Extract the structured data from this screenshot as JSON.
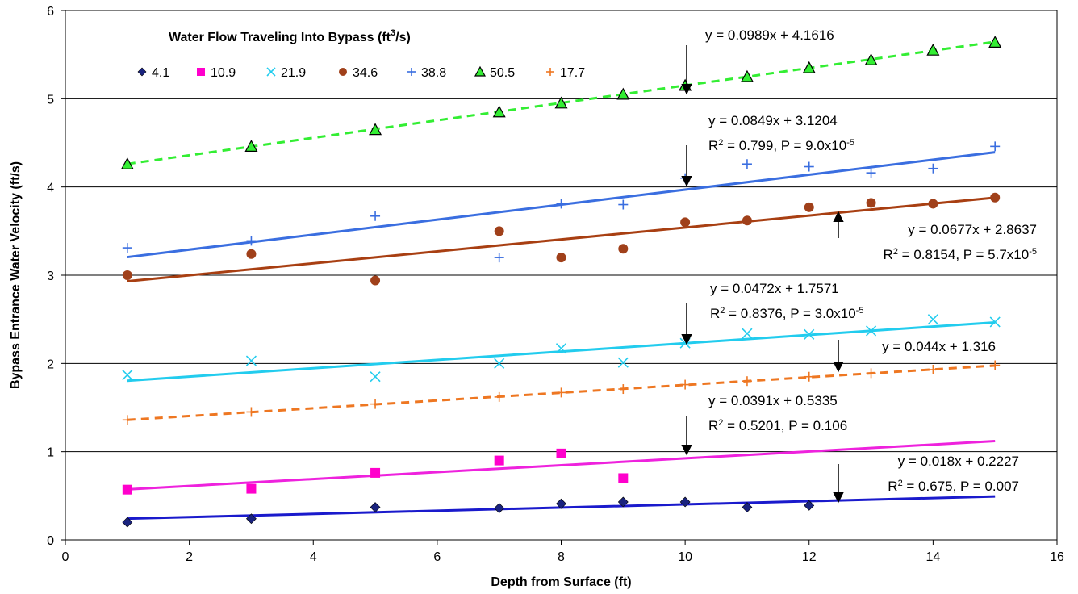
{
  "chart_data": {
    "type": "scatter",
    "title": "",
    "xlabel": "Depth from Surface (ft)",
    "ylabel": "Bypass Entrance Water Velocity (ft/s)",
    "xlim": [
      0,
      16
    ],
    "ylim": [
      0,
      6
    ],
    "x_ticks": [
      0,
      2,
      4,
      6,
      8,
      10,
      12,
      14,
      16
    ],
    "y_ticks": [
      0,
      1,
      2,
      3,
      4,
      5,
      6
    ],
    "grid": "horizontal",
    "legend_title_parts": [
      "Water Flow Traveling Into Bypass (ft",
      "3",
      "/s)"
    ],
    "legend_position": "top-left",
    "series": [
      {
        "name": "4.1",
        "marker": "diamond",
        "color": "#1a237e",
        "line_color": "#1a1acc",
        "line_style": "solid",
        "x": [
          1,
          3,
          5,
          7,
          8,
          9,
          10,
          11,
          12
        ],
        "y": [
          0.2,
          0.24,
          0.37,
          0.36,
          0.41,
          0.43,
          0.43,
          0.37,
          0.39
        ],
        "trend": {
          "slope": 0.018,
          "intercept": 0.2227
        }
      },
      {
        "name": "10.9",
        "marker": "square",
        "color": "#ff00cc",
        "line_color": "#ee22dd",
        "line_style": "solid",
        "x": [
          1,
          3,
          5,
          7,
          8,
          9
        ],
        "y": [
          0.57,
          0.58,
          0.76,
          0.9,
          0.98,
          0.7
        ],
        "trend": {
          "slope": 0.0391,
          "intercept": 0.5335
        }
      },
      {
        "name": "21.9",
        "marker": "x",
        "color": "#22ccee",
        "line_color": "#22ccee",
        "line_style": "solid",
        "x": [
          1,
          3,
          5,
          7,
          8,
          9,
          10,
          11,
          12,
          13,
          14,
          15
        ],
        "y": [
          1.87,
          2.03,
          1.85,
          2.0,
          2.17,
          2.01,
          2.23,
          2.34,
          2.33,
          2.37,
          2.5,
          2.47
        ],
        "trend": {
          "slope": 0.0472,
          "intercept": 1.7571
        }
      },
      {
        "name": "34.6",
        "marker": "circle",
        "color": "#a0401a",
        "line_color": "#a83f12",
        "line_style": "solid",
        "x": [
          1,
          3,
          5,
          7,
          8,
          9,
          10,
          11,
          12,
          13,
          14,
          15
        ],
        "y": [
          3.0,
          3.24,
          2.94,
          3.5,
          3.2,
          3.3,
          3.6,
          3.62,
          3.77,
          3.82,
          3.81,
          3.88
        ],
        "trend": {
          "slope": 0.0677,
          "intercept": 2.8637
        }
      },
      {
        "name": "38.8",
        "marker": "plus",
        "color": "#3a6ee0",
        "line_color": "#3a6ee0",
        "line_style": "solid",
        "x": [
          1,
          3,
          5,
          7,
          8,
          9,
          10,
          11,
          12,
          13,
          14,
          15
        ],
        "y": [
          3.31,
          3.39,
          3.67,
          3.2,
          3.81,
          3.8,
          4.1,
          4.26,
          4.23,
          4.16,
          4.21,
          4.46
        ],
        "trend": {
          "slope": 0.0849,
          "intercept": 3.1204
        }
      },
      {
        "name": "50.5",
        "marker": "triangle",
        "color": "#33ee33",
        "line_color": "#33ee33",
        "line_style": "dashed",
        "x": [
          1,
          3,
          5,
          7,
          8,
          9,
          10,
          11,
          12,
          13,
          14,
          15
        ],
        "y": [
          4.26,
          4.46,
          4.65,
          4.85,
          4.95,
          5.05,
          5.15,
          5.25,
          5.35,
          5.44,
          5.55,
          5.64
        ],
        "trend": {
          "slope": 0.0989,
          "intercept": 4.1616
        }
      },
      {
        "name": "17.7",
        "marker": "plus",
        "color": "#ee7722",
        "line_color": "#ee7722",
        "line_style": "dashed",
        "x": [
          1,
          3,
          5,
          7,
          8,
          9,
          10,
          11,
          12,
          13,
          14,
          15
        ],
        "y": [
          1.36,
          1.45,
          1.54,
          1.62,
          1.67,
          1.71,
          1.76,
          1.8,
          1.85,
          1.89,
          1.93,
          1.98
        ],
        "trend": {
          "slope": 0.044,
          "intercept": 1.316
        }
      }
    ],
    "annotations": [
      {
        "lines": [
          [
            [
              "y = 0.0989x + 4.1616",
              ""
            ]
          ]
        ]
      },
      {
        "lines": [
          [
            [
              "y = 0.0849x + 3.1204",
              ""
            ]
          ],
          [
            [
              "R",
              ""
            ],
            [
              "2",
              "sup"
            ],
            [
              " = 0.799, P = 9.0x10",
              ""
            ],
            [
              "-5",
              "sup"
            ]
          ]
        ]
      },
      {
        "lines": [
          [
            [
              "y = 0.0677x + 2.8637",
              ""
            ]
          ],
          [
            [
              "R",
              ""
            ],
            [
              "2",
              "sup"
            ],
            [
              " = 0.8154, P = 5.7x10",
              ""
            ],
            [
              "-5",
              "sup"
            ]
          ]
        ]
      },
      {
        "lines": [
          [
            [
              "y = 0.0472x + 1.7571",
              ""
            ]
          ],
          [
            [
              "R",
              ""
            ],
            [
              "2",
              "sup"
            ],
            [
              " = 0.8376, P = 3.0x10",
              ""
            ],
            [
              "-5",
              "sup"
            ]
          ]
        ]
      },
      {
        "lines": [
          [
            [
              "y = 0.044x + 1.316",
              ""
            ]
          ]
        ]
      },
      {
        "lines": [
          [
            [
              "y = 0.0391x + 0.5335",
              ""
            ]
          ],
          [
            [
              "R",
              ""
            ],
            [
              "2",
              "sup"
            ],
            [
              " = 0.5201, P = 0.106",
              ""
            ]
          ]
        ]
      },
      {
        "lines": [
          [
            [
              "y = 0.018x + 0.2227",
              ""
            ]
          ],
          [
            [
              "R",
              ""
            ],
            [
              "2",
              "sup"
            ],
            [
              " = 0.675, P = 0.007",
              ""
            ]
          ]
        ]
      }
    ]
  }
}
